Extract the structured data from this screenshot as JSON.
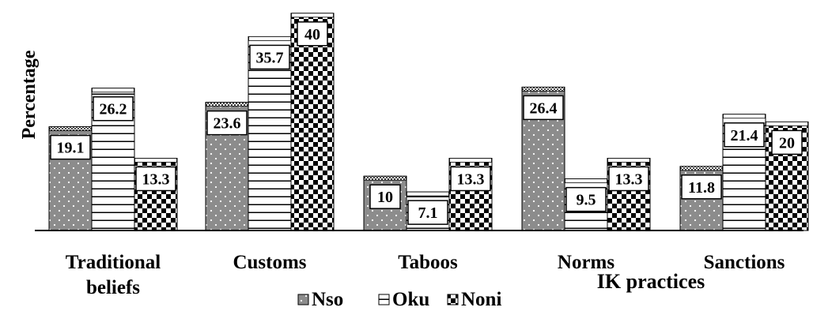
{
  "chart_data": {
    "type": "bar",
    "title": "",
    "xlabel": "IK practices",
    "ylabel": "Percentage",
    "categories": [
      [
        "Traditional",
        "beliefs"
      ],
      [
        "Customs"
      ],
      [
        "Taboos"
      ],
      [
        "Norms"
      ],
      [
        "Sanctions"
      ]
    ],
    "series": [
      {
        "name": "Nso",
        "values": [
          19.1,
          23.6,
          10,
          26.4,
          11.8
        ],
        "pattern": "dots"
      },
      {
        "name": "Oku",
        "values": [
          26.2,
          35.7,
          7.1,
          9.5,
          21.4
        ],
        "pattern": "hlines"
      },
      {
        "name": "Noni",
        "values": [
          13.3,
          40,
          13.3,
          13.3,
          20
        ],
        "pattern": "checker"
      }
    ],
    "ylim": [
      0,
      40
    ],
    "grid": false,
    "legend_position": "bottom-center",
    "colors": {
      "ink": "#000000",
      "fill_dark": "#8a8a8a",
      "background": "#ffffff"
    }
  }
}
